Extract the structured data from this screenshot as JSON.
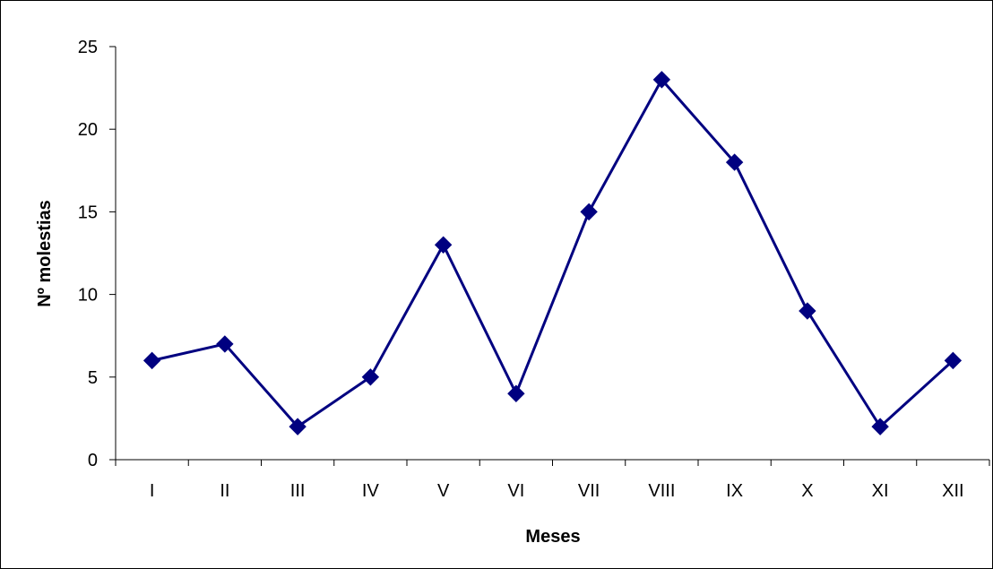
{
  "chart_data": {
    "type": "line",
    "title": "",
    "xlabel": "Meses",
    "ylabel": "Nº molestias",
    "categories": [
      "I",
      "II",
      "III",
      "IV",
      "V",
      "VI",
      "VII",
      "VIII",
      "IX",
      "X",
      "XI",
      "XII"
    ],
    "series": [
      {
        "values": [
          6,
          7,
          2,
          5,
          13,
          4,
          15,
          23,
          18,
          9,
          2,
          6
        ]
      }
    ],
    "ylim": [
      0,
      25
    ],
    "yticks": [
      0,
      5,
      10,
      15,
      20,
      25
    ],
    "grid": false,
    "legend": "none",
    "line_color": "#000080",
    "marker": "diamond"
  }
}
